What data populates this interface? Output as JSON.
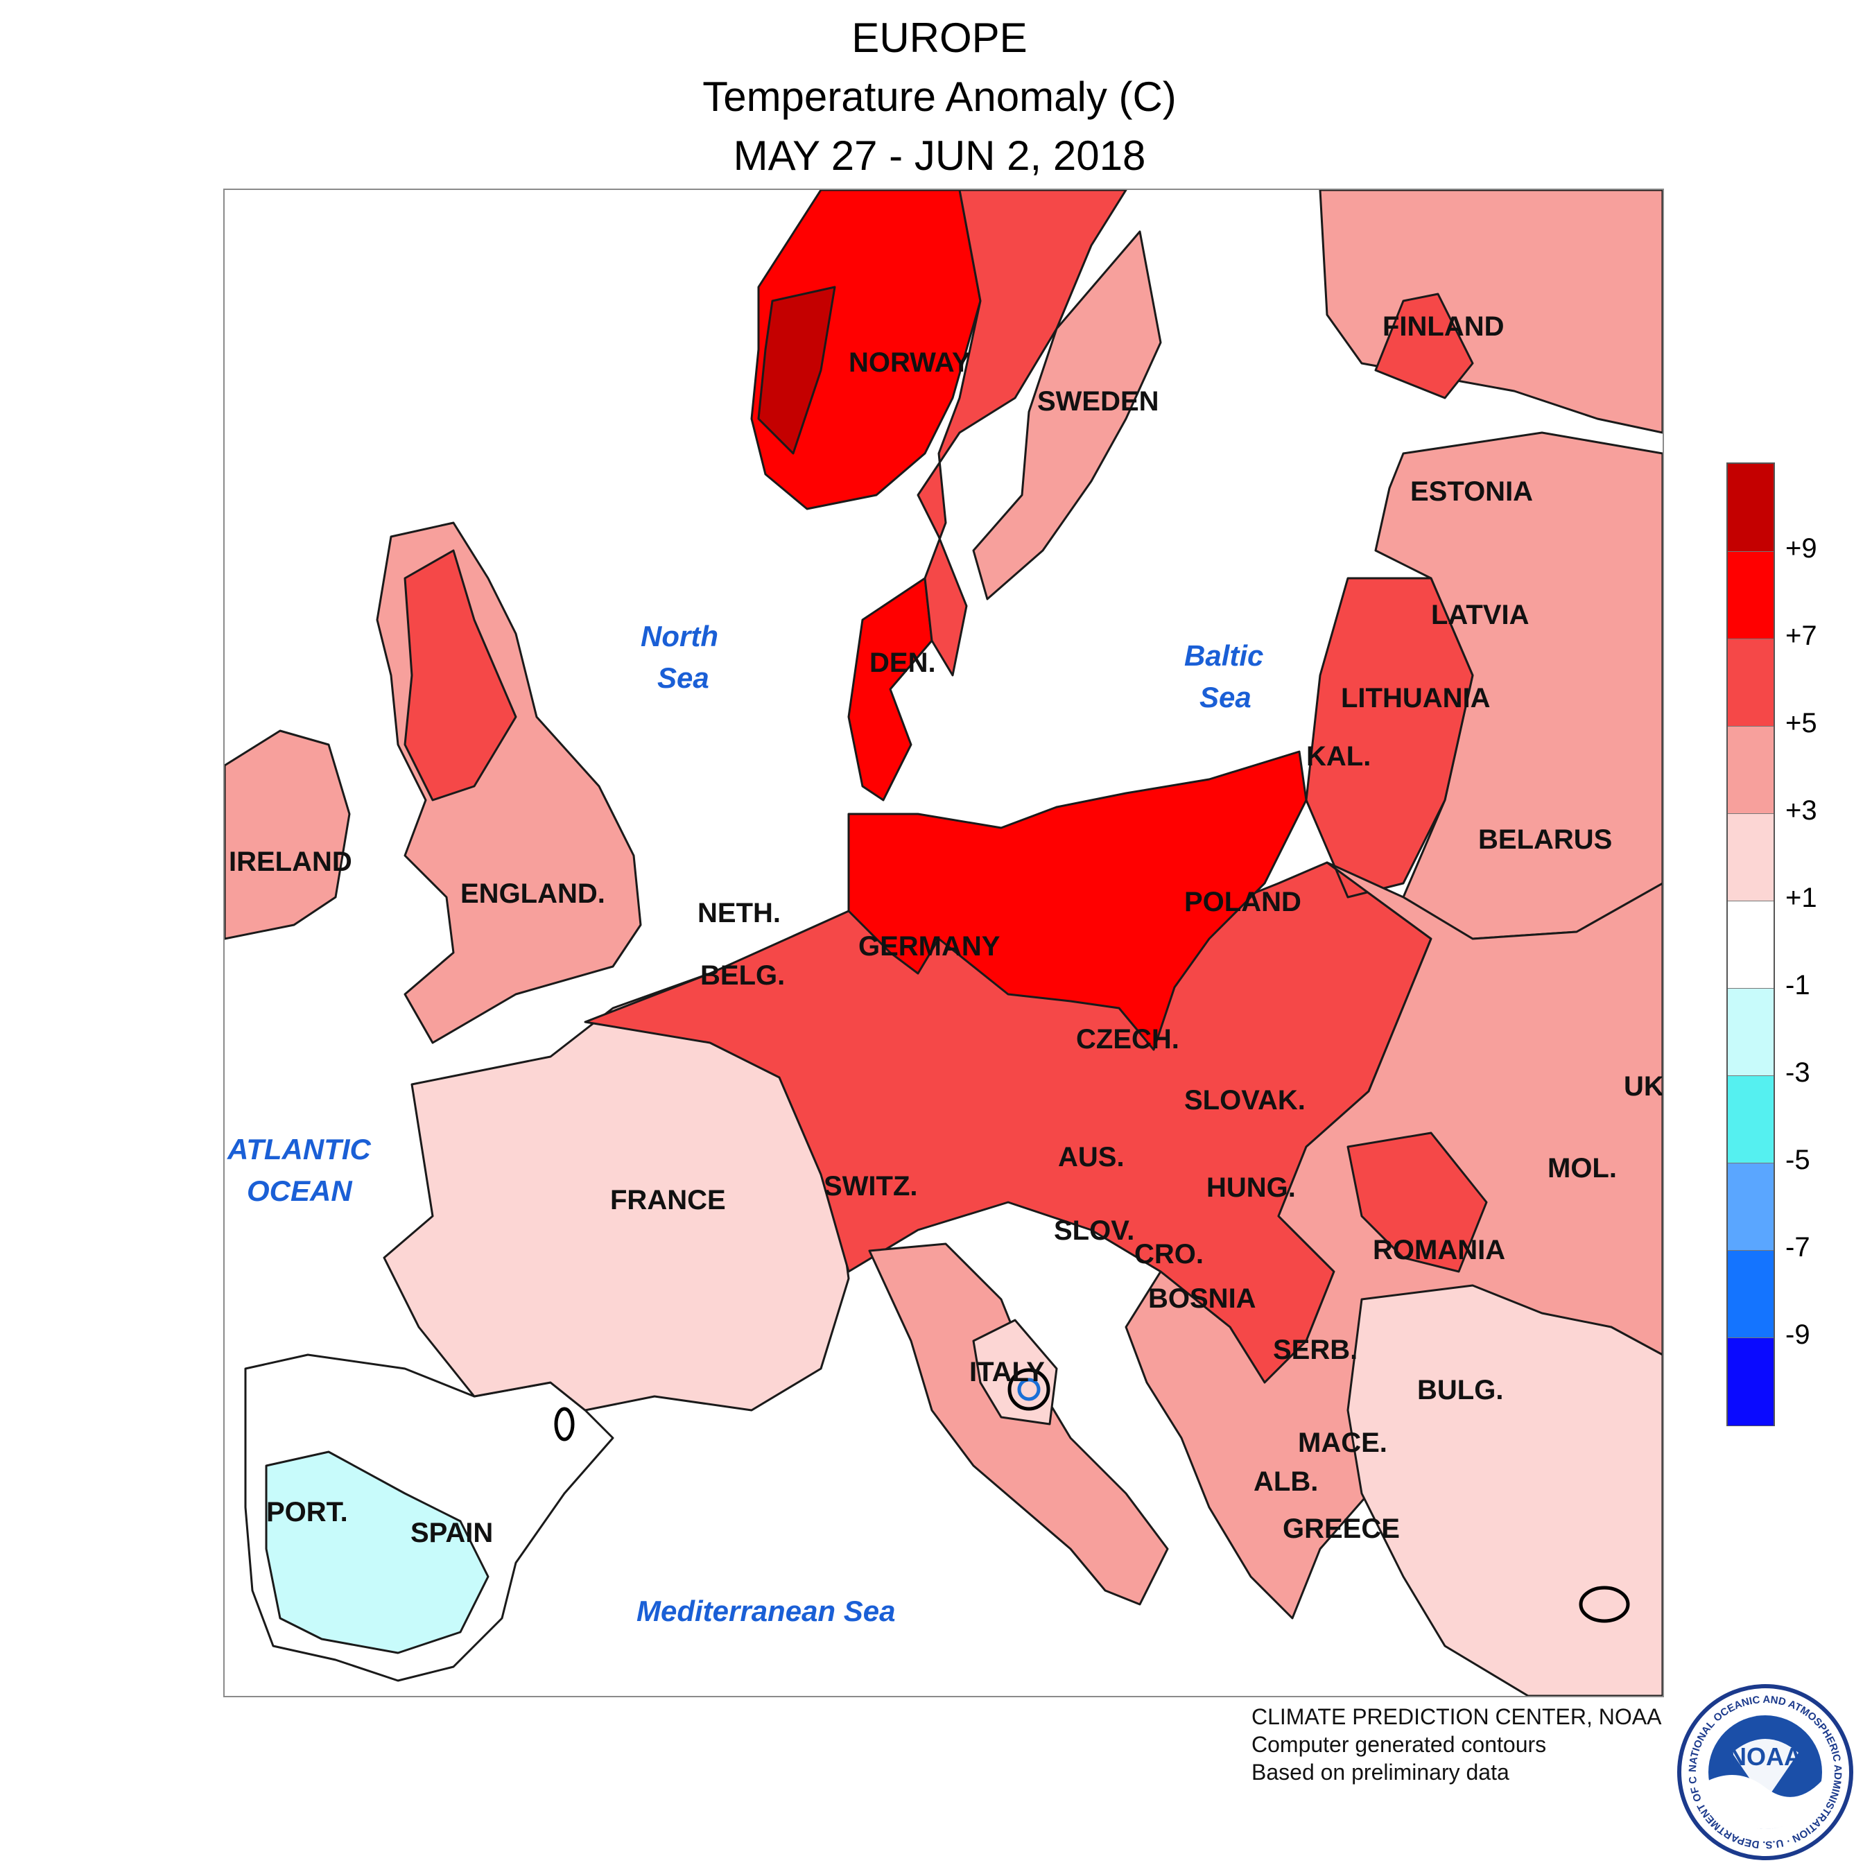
{
  "header": {
    "title": "EUROPE",
    "subtitle": "Temperature Anomaly (C)",
    "date_range": "MAY 27 - JUN 2, 2018"
  },
  "map": {
    "country_labels": [
      "NORWAY",
      "SWEDEN",
      "FINLAND",
      "ESTONIA",
      "LATVIA",
      "LITHUANIA",
      "KAL.",
      "BELARUS",
      "DEN.",
      "IRELAND",
      "ENGLAND.",
      "NETH.",
      "GERMANY",
      "POLAND",
      "BELG.",
      "CZECH.",
      "SLOVAK.",
      "UK",
      "FRANCE",
      "SWITZ.",
      "AUS.",
      "HUNG.",
      "MOL.",
      "SLOV.",
      "CRO.",
      "ROMANIA",
      "BOSNIA",
      "SERB.",
      "PORT.",
      "SPAIN",
      "ITALY",
      "BULG.",
      "MACE.",
      "ALB.",
      "GREECE"
    ],
    "water_labels": [
      "North",
      "Sea",
      "Baltic",
      "Sea",
      "ATLANTIC",
      "OCEAN",
      "Mediterranean Sea"
    ]
  },
  "legend": {
    "ticks": [
      "+9",
      "+7",
      "+5",
      "+3",
      "+1",
      "-1",
      "-3",
      "-5",
      "-7",
      "-9"
    ],
    "colors": [
      "#c40000",
      "#ff0000",
      "#f54848",
      "#f7a09c",
      "#fcd6d4",
      "#ffffff",
      "#c8fbfb",
      "#55f0f0",
      "#5aa6ff",
      "#1474ff",
      "#0a0aff"
    ]
  },
  "credits": {
    "line1": "CLIMATE PREDICTION CENTER, NOAA",
    "line2": "Computer generated contours",
    "line3": "Based on preliminary data"
  },
  "logo": {
    "text": "NOAA",
    "ring_text": "NATIONAL OCEANIC AND ATMOSPHERIC ADMINISTRATION · U.S. DEPARTMENT OF COMMERCE"
  }
}
